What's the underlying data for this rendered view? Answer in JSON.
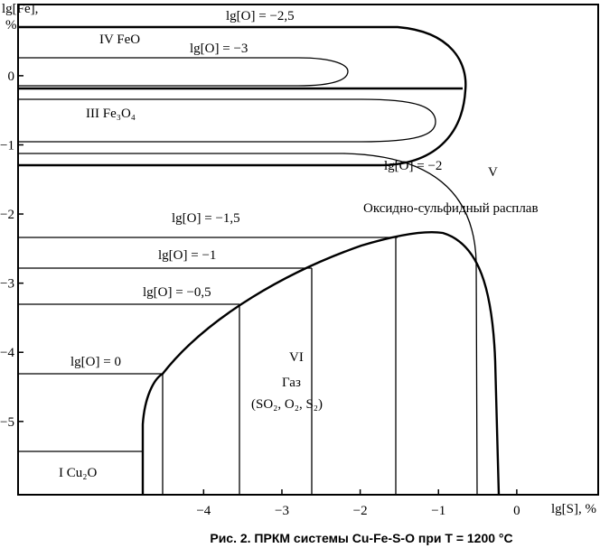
{
  "figure": {
    "y_label_1": "lg[Fe],",
    "y_label_2": "%",
    "x_label": "lg[S], %",
    "xlim": [
      -6.37,
      1.04
    ],
    "ylim": [
      -6.06,
      1.03
    ],
    "xticks": [
      {
        "value": -4,
        "label": "−4"
      },
      {
        "value": -3,
        "label": "−3"
      },
      {
        "value": -2,
        "label": "−2"
      },
      {
        "value": -1,
        "label": "−1"
      },
      0
    ],
    "yticks": [
      0,
      {
        "value": -1,
        "label": "−1"
      },
      {
        "value": -2,
        "label": "−2"
      },
      {
        "value": -3,
        "label": "−3"
      },
      {
        "value": -4,
        "label": "−4"
      },
      {
        "value": -5,
        "label": "−5"
      }
    ],
    "curve_labels": [
      "lg[O] = −2,5",
      "lg[O] = −3",
      "lg[O] = −2",
      "lg[O] = −1,5",
      "lg[O] = −1",
      "lg[O] = −0,5",
      "lg[O] = 0"
    ],
    "regions": [
      "IV  FeO",
      "III  Fe₃O₄",
      "V",
      "Оксидно-сульфидный расплав",
      "VI",
      "Газ",
      "(SO₂, O₂, S₂)",
      "I  Cu₂O"
    ],
    "caption": "Рис. 2. ПРКМ системы Cu-Fe-S-O при T = 1200 °C"
  }
}
